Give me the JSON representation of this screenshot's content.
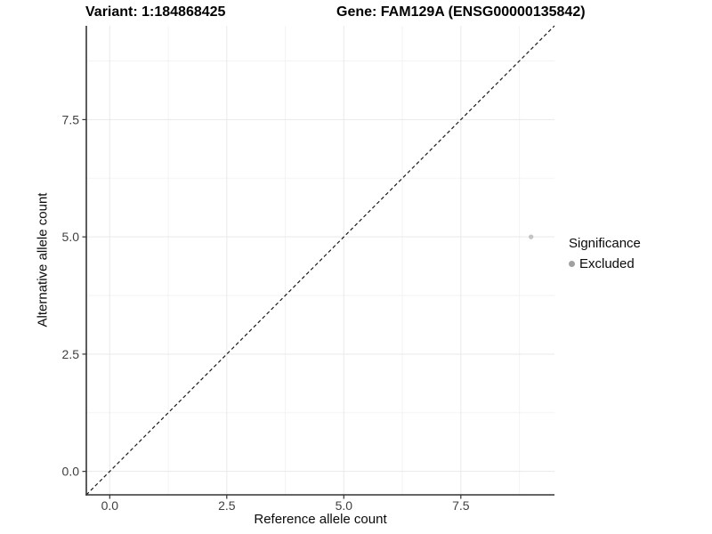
{
  "header": {
    "variant_title": "Variant: 1:184868425",
    "gene_title": "Gene: FAM129A (ENSG00000135842)"
  },
  "chart_data": {
    "type": "scatter",
    "title_left": "Variant: 1:184868425",
    "title_right": "Gene: FAM129A (ENSG00000135842)",
    "xlabel": "Reference allele count",
    "ylabel": "Alternative allele count",
    "xlim": [
      -0.5,
      9.5
    ],
    "ylim": [
      -0.5,
      9.5
    ],
    "x_ticks": [
      {
        "value": 0,
        "label": "0.0"
      },
      {
        "value": 2.5,
        "label": "2.5"
      },
      {
        "value": 5,
        "label": "5.0"
      },
      {
        "value": 7.5,
        "label": "7.5"
      }
    ],
    "y_ticks": [
      {
        "value": 0,
        "label": "0.0"
      },
      {
        "value": 2.5,
        "label": "2.5"
      },
      {
        "value": 5,
        "label": "5.0"
      },
      {
        "value": 7.5,
        "label": "7.5"
      }
    ],
    "minor_tick_values": [
      1.25,
      3.75,
      6.25,
      8.75
    ],
    "grid": true,
    "points": [
      {
        "x": 9,
        "y": 5,
        "series": "Excluded",
        "color": "#c4c4c4",
        "radius": 2.7
      }
    ],
    "reference_line": {
      "slope": 1,
      "intercept": 0,
      "style": "dashed",
      "color": "#1a1a1a"
    },
    "legend": {
      "title": "Significance",
      "position": "right",
      "entries": [
        {
          "label": "Excluded",
          "color": "#a0a0a0"
        }
      ]
    },
    "colors": {
      "major_grid": "#e9e9e9",
      "minor_grid": "#f3f3f3",
      "axis_line": "#333333",
      "tick_mark": "#333333",
      "tick_label": "#404040"
    }
  }
}
